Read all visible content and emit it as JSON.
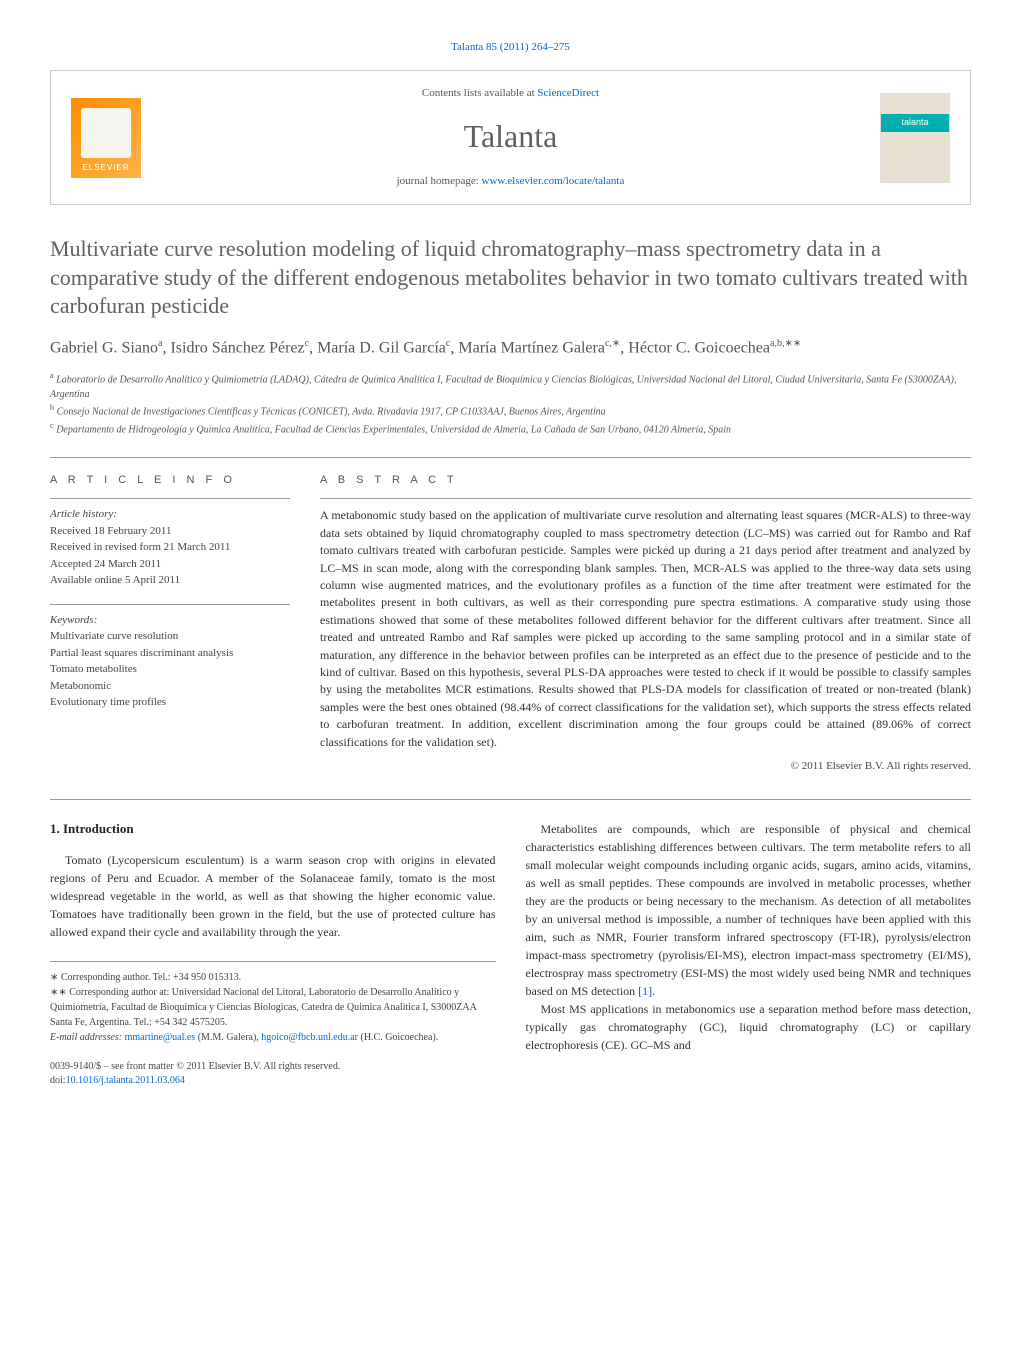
{
  "citation": "Talanta 85 (2011) 264–275",
  "header": {
    "contents_prefix": "Contents lists available at ",
    "contents_link": "ScienceDirect",
    "journal_name": "Talanta",
    "homepage_prefix": "journal homepage: ",
    "homepage_url": "www.elsevier.com/locate/talanta",
    "elsevier_label": "ELSEVIER",
    "cover_label": "talanta"
  },
  "title": "Multivariate curve resolution modeling of liquid chromatography–mass spectrometry data in a comparative study of the different endogenous metabolites behavior in two tomato cultivars treated with carbofuran pesticide",
  "authors_html": "Gabriel G. Siano<sup>a</sup>, Isidro Sánchez Pérez<sup>c</sup>, María D. Gil García<sup>c</sup>, María Martínez Galera<sup>c,∗</sup>, Héctor C. Goicoechea<sup>a,b,∗∗</sup>",
  "affiliations": [
    "a Laboratorio de Desarrollo Analítico y Quimiometría (LADAQ), Cátedra de Química Analítica I, Facultad de Bioquímica y Ciencias Biológicas, Universidad Nacional del Litoral, Ciudad Universitaria, Santa Fe (S3000ZAA), Argentina",
    "b Consejo Nacional de Investigaciones Científicas y Técnicas (CONICET), Avda. Rivadavia 1917, CP C1033AAJ, Buenos Aires, Argentina",
    "c Departamento de Hidrogeología y Química Analítica, Facultad de Ciencias Experimentales, Universidad de Almería, La Cañada de San Urbano, 04120 Almería, Spain"
  ],
  "article_info": {
    "heading": "A R T I C L E   I N F O",
    "history_label": "Article history:",
    "history": [
      "Received 18 February 2011",
      "Received in revised form 21 March 2011",
      "Accepted 24 March 2011",
      "Available online 5 April 2011"
    ],
    "keywords_label": "Keywords:",
    "keywords": [
      "Multivariate curve resolution",
      "Partial least squares discriminant analysis",
      "Tomato metabolites",
      "Metabonomic",
      "Evolutionary time profiles"
    ]
  },
  "abstract": {
    "heading": "A B S T R A C T",
    "text": "A metabonomic study based on the application of multivariate curve resolution and alternating least squares (MCR-ALS) to three-way data sets obtained by liquid chromatography coupled to mass spectrometry detection (LC–MS) was carried out for Rambo and Raf tomato cultivars treated with carbofuran pesticide. Samples were picked up during a 21 days period after treatment and analyzed by LC–MS in scan mode, along with the corresponding blank samples. Then, MCR-ALS was applied to the three-way data sets using column wise augmented matrices, and the evolutionary profiles as a function of the time after treatment were estimated for the metabolites present in both cultivars, as well as their corresponding pure spectra estimations. A comparative study using those estimations showed that some of these metabolites followed different behavior for the different cultivars after treatment. Since all treated and untreated Rambo and Raf samples were picked up according to the same sampling protocol and in a similar state of maturation, any difference in the behavior between profiles can be interpreted as an effect due to the presence of pesticide and to the kind of cultivar. Based on this hypothesis, several PLS-DA approaches were tested to check if it would be possible to classify samples by using the metabolites MCR estimations. Results showed that PLS-DA models for classification of treated or non-treated (blank) samples were the best ones obtained (98.44% of correct classifications for the validation set), which supports the stress effects related to carbofuran treatment. In addition, excellent discrimination among the four groups could be attained (89.06% of correct classifications for the validation set).",
    "copyright": "© 2011 Elsevier B.V. All rights reserved."
  },
  "body": {
    "section_heading": "1. Introduction",
    "col1_p1": "Tomato (Lycopersicum esculentum) is a warm season crop with origins in elevated regions of Peru and Ecuador. A member of the Solanaceae family, tomato is the most widespread vegetable in the world, as well as that showing the higher economic value. Tomatoes have traditionally been grown in the field, but the use of protected culture has allowed expand their cycle and availability through the year.",
    "col2_p1": "Metabolites are compounds, which are responsible of physical and chemical characteristics establishing differences between cultivars. The term metabolite refers to all small molecular weight compounds including organic acids, sugars, amino acids, vitamins, as well as small peptides. These compounds are involved in metabolic processes, whether they are the products or being necessary to the mechanism. As detection of all metabolites by an universal method is impossible, a number of techniques have been applied with this aim, such as NMR, Fourier transform infrared spectroscopy (FT-IR), pyrolysis/electron impact-mass spectrometry (pyrolisis/EI-MS), electron impact-mass spectrometry (EI/MS), electrospray mass spectrometry (ESI-MS) the most widely used being NMR and techniques based on MS detection [1].",
    "col2_p2": "Most MS applications in metabonomics use a separation method before mass detection, typically gas chromatography (GC), liquid chromatography (LC) or capillary electrophoresis (CE). GC–MS and",
    "ref1": "[1]"
  },
  "footnotes": {
    "corr1": "∗ Corresponding author. Tel.: +34 950 015313.",
    "corr2": "∗∗ Corresponding author at: Universidad Nacional del Litoral, Laboratorio de Desarrollo Analítico y Quimiometría, Facultad de Bioquímica y Ciencias Biologicas, Catedra de Quimica Analitica I, S3000ZAA Santa Fe, Argentina. Tel.: +54 342 4575205.",
    "email_label": "E-mail addresses: ",
    "email1": "mmartine@ual.es",
    "email1_name": " (M.M. Galera), ",
    "email2": "hgoico@fbcb.unl.edu.ar",
    "email2_name": " (H.C. Goicoechea)."
  },
  "footer": {
    "line1": "0039-9140/$ – see front matter © 2011 Elsevier B.V. All rights reserved.",
    "doi_label": "doi:",
    "doi": "10.1016/j.talanta.2011.03.064"
  },
  "colors": {
    "link": "#0066cc",
    "heading_grey": "#606060",
    "text": "#333333",
    "elsevier_orange": "#ff8c00",
    "talanta_teal": "#00b0b0"
  }
}
